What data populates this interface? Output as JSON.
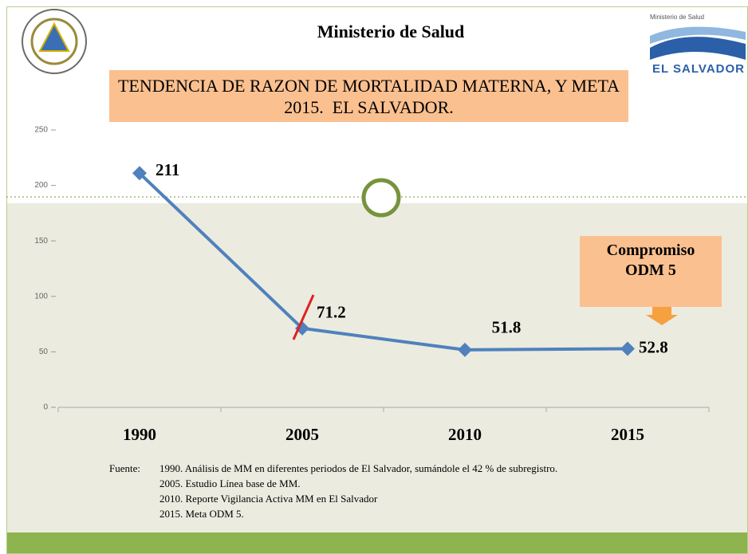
{
  "header": {
    "ministry": "Ministerio de Salud",
    "logo_top": "Ministerio de Salud",
    "logo_name": "EL SALVADOR"
  },
  "chart_data": {
    "type": "line",
    "title": "TENDENCIA DE RAZON DE MORTALIDAD MATERNA, Y META 2015.  EL SALVADOR.",
    "categories": [
      "1990",
      "2005",
      "2010",
      "2015"
    ],
    "series": [
      {
        "name": "Razón de mortalidad materna",
        "color": "#4f81bd",
        "values": [
          211,
          71.2,
          51.8,
          52.8
        ]
      }
    ],
    "ylim": [
      0,
      250
    ],
    "yticks": [
      0,
      50,
      100,
      150,
      200,
      250
    ],
    "grid": false,
    "annotation": "Compromiso ODM 5"
  },
  "source": {
    "label": "Fuente:",
    "lines": [
      "1990. Análisis de MM en diferentes periodos de El Salvador, sumándole el 42 % de subregistro.",
      "2005. Estudio Línea base de MM.",
      "2010. Reporte Vigilancia Activa MM en El Salvador",
      "2015. Meta ODM 5."
    ]
  }
}
